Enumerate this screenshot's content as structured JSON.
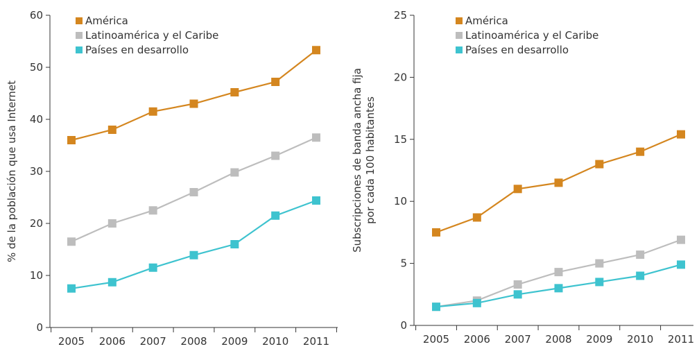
{
  "chart_data": [
    {
      "type": "line",
      "ylabel": "% de la población que usa Internet",
      "xlabel": "",
      "ylim": [
        0,
        60
      ],
      "yticks": [
        0,
        10,
        20,
        30,
        40,
        50,
        60
      ],
      "x": [
        "2005",
        "2006",
        "2007",
        "2008",
        "2009",
        "2010",
        "2011"
      ],
      "legend_position": "top-left",
      "grid": false,
      "series": [
        {
          "name": "América",
          "color": "#d4861f",
          "values": [
            36,
            38,
            41.5,
            43,
            45.2,
            47.2,
            53.3
          ]
        },
        {
          "name": "Latinoamérica y el Caribe",
          "color": "#bdbdbd",
          "values": [
            16.5,
            20,
            22.5,
            26,
            29.8,
            33,
            36.5
          ]
        },
        {
          "name": "Países en desarrollo",
          "color": "#3ec3cf",
          "values": [
            7.5,
            8.7,
            11.5,
            13.9,
            16,
            21.5,
            24.4
          ]
        }
      ]
    },
    {
      "type": "line",
      "ylabel": "Subscripciones de banda ancha fija por cada 100 habitantes",
      "ylabel_lines": [
        "Subscripciones de banda ancha fija",
        "por cada 100 habitantes"
      ],
      "xlabel": "",
      "ylim": [
        0,
        25
      ],
      "yticks": [
        0,
        5,
        10,
        15,
        20,
        25
      ],
      "x": [
        "2005",
        "2006",
        "2007",
        "2008",
        "2009",
        "2010",
        "2011"
      ],
      "legend_position": "top-left",
      "grid": false,
      "series": [
        {
          "name": "América",
          "color": "#d4861f",
          "values": [
            7.5,
            8.7,
            11,
            11.5,
            13,
            14,
            15.4
          ]
        },
        {
          "name": "Latinoamérica y el Caribe",
          "color": "#bdbdbd",
          "values": [
            1.5,
            2,
            3.3,
            4.3,
            5,
            5.7,
            6.9
          ]
        },
        {
          "name": "Países en desarrollo",
          "color": "#3ec3cf",
          "values": [
            1.5,
            1.8,
            2.5,
            3,
            3.5,
            4,
            4.9
          ]
        }
      ]
    }
  ]
}
